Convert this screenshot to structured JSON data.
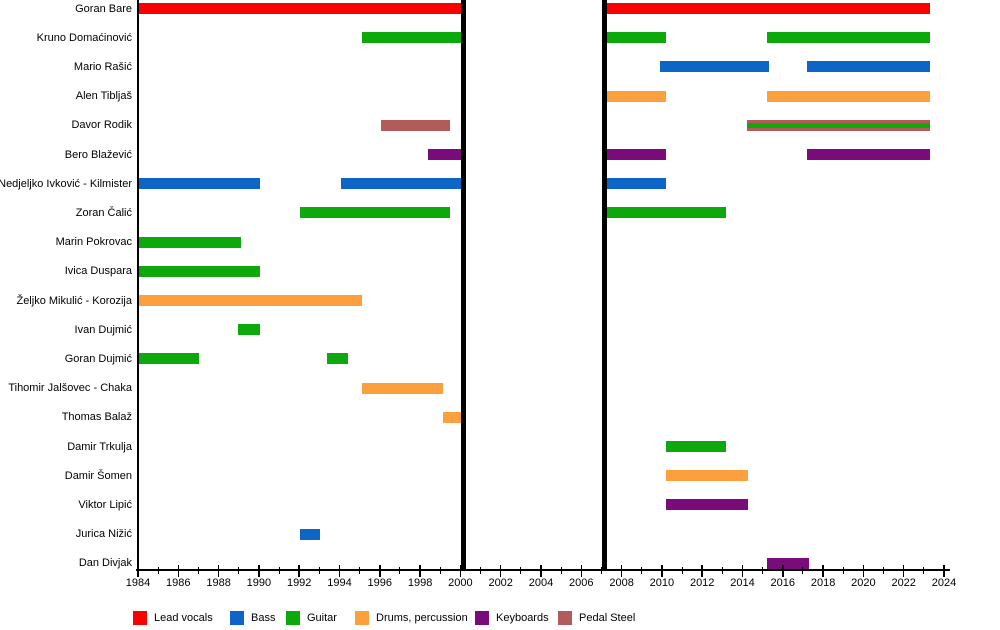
{
  "chart_data": {
    "type": "timeline",
    "description": "Band members timeline (Gantt-style), roles by color",
    "x_axis": {
      "min": 1984,
      "max": 2024,
      "tick_interval": 2,
      "minor_tick_interval": 1,
      "tick_labels": [
        "1984",
        "1986",
        "1988",
        "1990",
        "1992",
        "1994",
        "1996",
        "1998",
        "2000",
        "2002",
        "2004",
        "2006",
        "2008",
        "2010",
        "2012",
        "2014",
        "2016",
        "2018",
        "2020",
        "2022",
        "2024"
      ]
    },
    "era_lines": [
      2000,
      2007
    ],
    "roles": [
      {
        "id": "lead_vocals",
        "label": "Lead vocals",
        "color": "#fa0000"
      },
      {
        "id": "bass",
        "label": "Bass",
        "color": "#0d66c5"
      },
      {
        "id": "guitar",
        "label": "Guitar",
        "color": "#0ca80c"
      },
      {
        "id": "drums",
        "label": "Drums, percussion",
        "color": "#fba03c"
      },
      {
        "id": "keyboards",
        "label": "Keyboards",
        "color": "#7a0b7a"
      },
      {
        "id": "pedal_steel",
        "label": "Pedal Steel",
        "color": "#b15b5b"
      }
    ],
    "members": [
      {
        "name": "Goran Bare",
        "segments": [
          {
            "start": 1984,
            "end": 2000.1,
            "roles": [
              "lead_vocals"
            ]
          },
          {
            "start": 2007.3,
            "end": 2023.3,
            "roles": [
              "lead_vocals"
            ]
          }
        ]
      },
      {
        "name": "Kruno Domaćinović",
        "segments": [
          {
            "start": 1995.1,
            "end": 2000.1,
            "roles": [
              "guitar"
            ]
          },
          {
            "start": 2007.3,
            "end": 2010.2,
            "roles": [
              "guitar"
            ]
          },
          {
            "start": 2015.2,
            "end": 2023.3,
            "roles": [
              "guitar"
            ]
          }
        ]
      },
      {
        "name": "Mario Rašić",
        "segments": [
          {
            "start": 2009.9,
            "end": 2015.3,
            "roles": [
              "bass"
            ]
          },
          {
            "start": 2017.2,
            "end": 2023.3,
            "roles": [
              "bass"
            ]
          }
        ]
      },
      {
        "name": "Alen Tibljaš",
        "segments": [
          {
            "start": 2007.3,
            "end": 2010.2,
            "roles": [
              "drums"
            ]
          },
          {
            "start": 2015.2,
            "end": 2023.3,
            "roles": [
              "drums"
            ]
          }
        ]
      },
      {
        "name": "Davor Rodik",
        "segments": [
          {
            "start": 1996.05,
            "end": 1999.5,
            "roles": [
              "pedal_steel"
            ]
          },
          {
            "start": 2014.2,
            "end": 2023.3,
            "roles": [
              "pedal_steel",
              "guitar"
            ]
          }
        ]
      },
      {
        "name": "Bero Blažević",
        "segments": [
          {
            "start": 1998.4,
            "end": 2000.1,
            "roles": [
              "keyboards"
            ]
          },
          {
            "start": 2007.3,
            "end": 2010.2,
            "roles": [
              "keyboards"
            ]
          },
          {
            "start": 2017.2,
            "end": 2023.3,
            "roles": [
              "keyboards"
            ]
          }
        ]
      },
      {
        "name": "Nedjeljko Ivković - Kilmister",
        "segments": [
          {
            "start": 1984,
            "end": 1990.05,
            "roles": [
              "bass"
            ]
          },
          {
            "start": 1994.05,
            "end": 2000.1,
            "roles": [
              "bass"
            ]
          },
          {
            "start": 2007.3,
            "end": 2010.2,
            "roles": [
              "bass"
            ]
          }
        ]
      },
      {
        "name": "Zoran Čalić",
        "segments": [
          {
            "start": 1992.05,
            "end": 1999.5,
            "roles": [
              "guitar"
            ]
          },
          {
            "start": 2007.3,
            "end": 2013.2,
            "roles": [
              "guitar"
            ]
          }
        ]
      },
      {
        "name": "Marin Pokrovac",
        "segments": [
          {
            "start": 1984,
            "end": 1989.1,
            "roles": [
              "guitar"
            ]
          }
        ]
      },
      {
        "name": "Ivica Duspara",
        "segments": [
          {
            "start": 1984,
            "end": 1990.05,
            "roles": [
              "guitar"
            ]
          }
        ]
      },
      {
        "name": "Željko Mikulić - Korozija",
        "segments": [
          {
            "start": 1984,
            "end": 1995.1,
            "roles": [
              "drums"
            ]
          }
        ]
      },
      {
        "name": "Ivan Dujmić",
        "segments": [
          {
            "start": 1988.95,
            "end": 1990.05,
            "roles": [
              "guitar"
            ]
          }
        ]
      },
      {
        "name": "Goran Dujmić",
        "segments": [
          {
            "start": 1984,
            "end": 1987.05,
            "roles": [
              "guitar"
            ]
          },
          {
            "start": 1993.4,
            "end": 1994.4,
            "roles": [
              "guitar"
            ]
          }
        ]
      },
      {
        "name": "Tihomir Jalšovec - Chaka",
        "segments": [
          {
            "start": 1995.1,
            "end": 1999.15,
            "roles": [
              "drums"
            ]
          }
        ]
      },
      {
        "name": "Thomas Balaž",
        "segments": [
          {
            "start": 1999.15,
            "end": 2000.1,
            "roles": [
              "drums"
            ]
          }
        ]
      },
      {
        "name": "Damir Trkulja",
        "segments": [
          {
            "start": 2010.2,
            "end": 2013.2,
            "roles": [
              "guitar"
            ]
          }
        ]
      },
      {
        "name": "Damir Šomen",
        "segments": [
          {
            "start": 2010.2,
            "end": 2014.25,
            "roles": [
              "drums"
            ]
          }
        ]
      },
      {
        "name": "Viktor Lipić",
        "segments": [
          {
            "start": 2010.2,
            "end": 2014.25,
            "roles": [
              "keyboards"
            ]
          }
        ]
      },
      {
        "name": "Jurica Nižić",
        "segments": [
          {
            "start": 1992.05,
            "end": 1993.05,
            "roles": [
              "bass"
            ]
          }
        ]
      },
      {
        "name": "Dan Divjak",
        "segments": [
          {
            "start": 2015.2,
            "end": 2017.3,
            "roles": [
              "keyboards"
            ]
          }
        ]
      }
    ]
  }
}
